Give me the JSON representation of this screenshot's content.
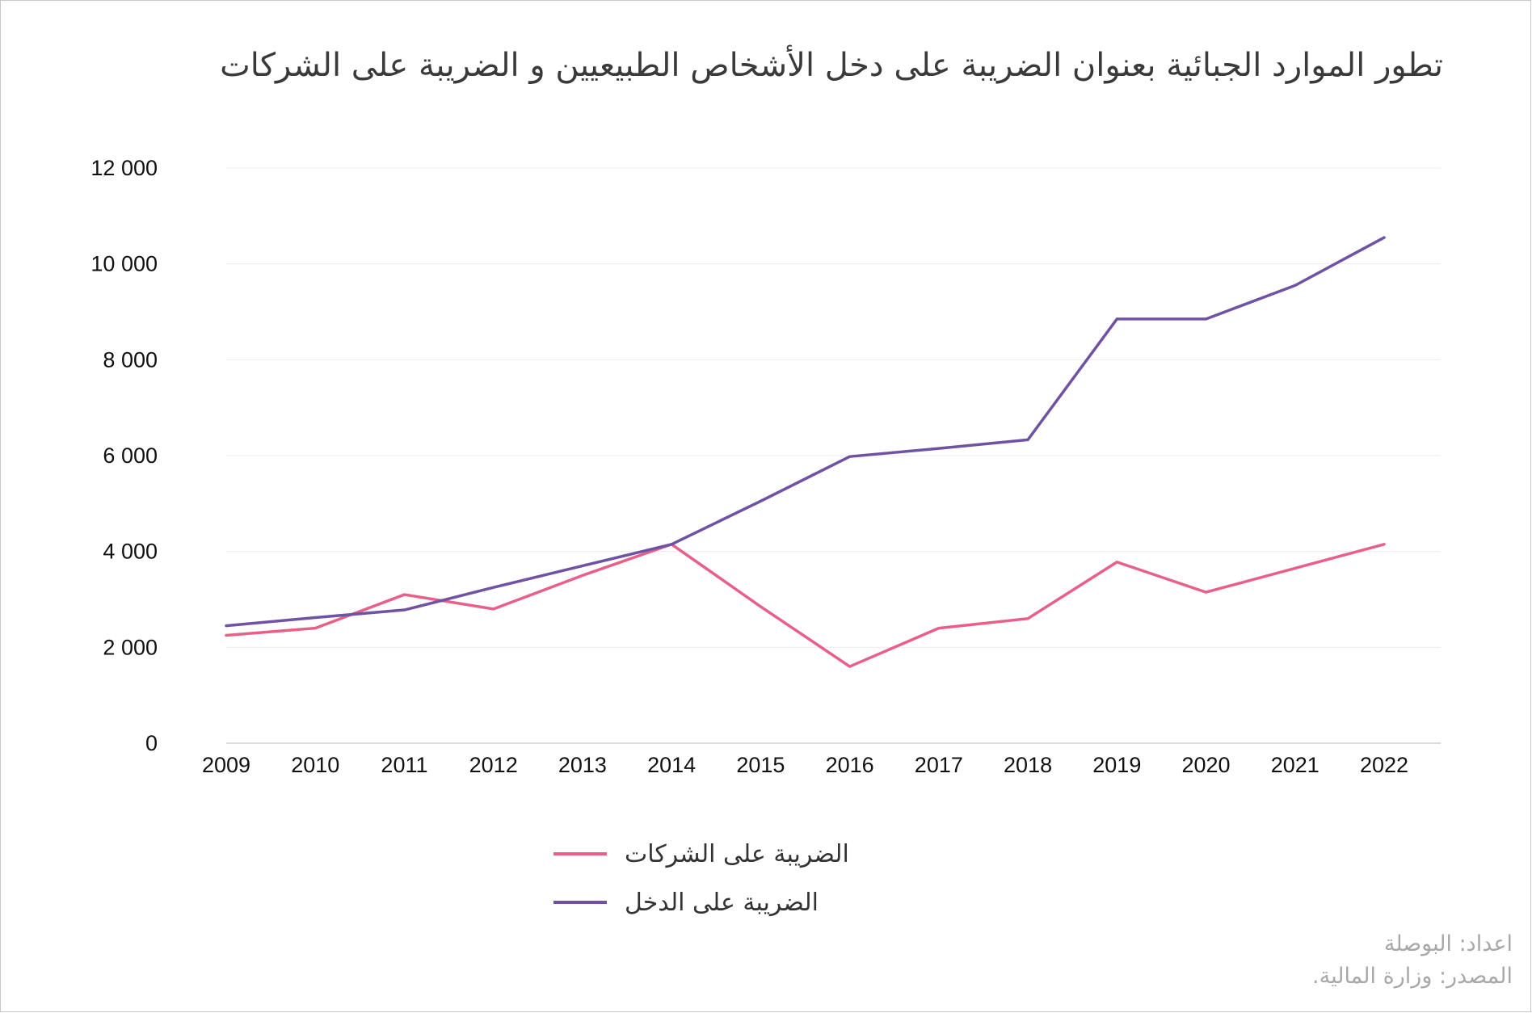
{
  "title": "تطور الموارد الجبائية بعنوان الضريبة على دخل الأشخاص الطبيعيين و الضريبة على الشركات",
  "credits": {
    "prepared_by": "اعداد: البوصلة",
    "source": "المصدر: وزارة المالية."
  },
  "chart_data": {
    "type": "line",
    "title": "تطور الموارد الجبائية بعنوان الضريبة على دخل الأشخاص الطبيعيين و الضريبة على الشركات",
    "xlabel": "",
    "ylabel": "",
    "x": [
      "2009",
      "2010",
      "2011",
      "2012",
      "2013",
      "2014",
      "2015",
      "2016",
      "2017",
      "2018",
      "2019",
      "2020",
      "2021",
      "2022"
    ],
    "ylim": [
      0,
      12000
    ],
    "yticks": [
      0,
      2000,
      4000,
      6000,
      8000,
      10000,
      12000
    ],
    "ytick_labels": [
      "0",
      "2 000",
      "4 000",
      "6 000",
      "8 000",
      "10 000",
      "12 000"
    ],
    "grid": true,
    "legend_position": "bottom",
    "series": [
      {
        "name": "الضريبة على الشركات",
        "color": "#e8608a",
        "values": [
          2250,
          2400,
          3100,
          2800,
          3500,
          4150,
          2850,
          1600,
          2400,
          2600,
          3780,
          3150,
          3650,
          4150
        ]
      },
      {
        "name": "الضريبة على الدخل",
        "color": "#6f52a3",
        "values": [
          2450,
          2620,
          2780,
          3250,
          3700,
          4150,
          5050,
          5980,
          6150,
          6330,
          8850,
          8850,
          9550,
          10550
        ]
      }
    ]
  }
}
